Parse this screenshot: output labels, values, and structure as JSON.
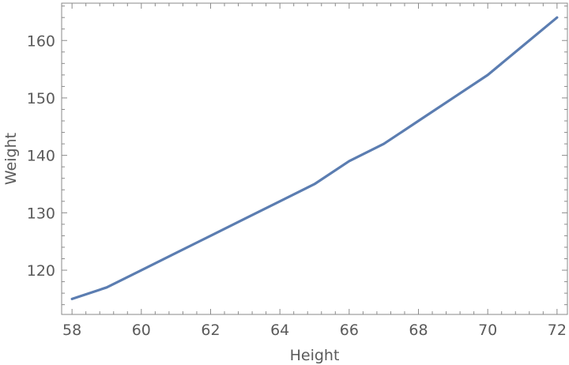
{
  "chart_data": {
    "type": "line",
    "title": "",
    "xlabel": "Height",
    "ylabel": "Weight",
    "xlim": [
      57.7,
      72.3
    ],
    "ylim": [
      112.3,
      166.5
    ],
    "x_major_ticks": [
      58,
      60,
      62,
      64,
      66,
      68,
      70,
      72
    ],
    "y_major_ticks": [
      120,
      130,
      140,
      150,
      160
    ],
    "grid": false,
    "legend": "none",
    "series": [
      {
        "color": "#5b7db1",
        "x": [
          58,
          59,
          60,
          61,
          62,
          63,
          64,
          65,
          66,
          67,
          68,
          69,
          70,
          71,
          72
        ],
        "y": [
          115,
          117,
          120,
          123,
          126,
          129,
          132,
          135,
          139,
          142,
          146,
          150,
          154,
          159,
          164
        ]
      }
    ]
  }
}
